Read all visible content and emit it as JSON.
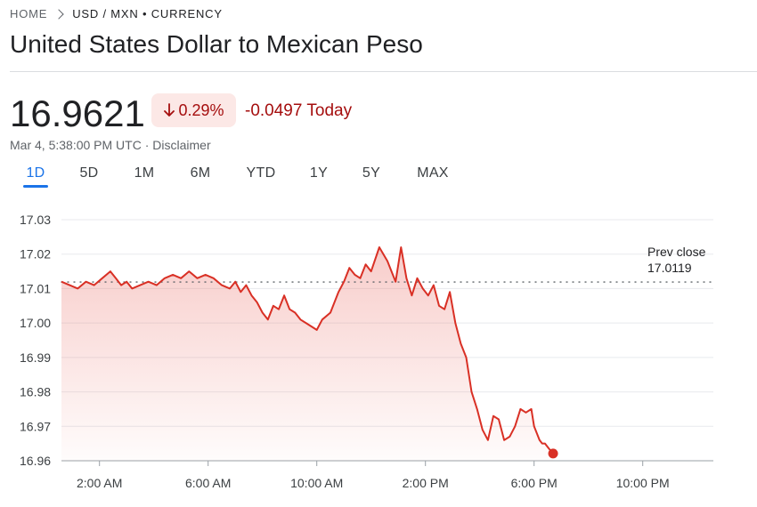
{
  "breadcrumb": {
    "home": "HOME",
    "current": "USD / MXN • CURRENCY"
  },
  "title": "United States Dollar to Mexican Peso",
  "quote": {
    "price": "16.9621",
    "change_pct": "0.29%",
    "change_abs": "-0.0497 Today",
    "timestamp": "Mar 4, 5:38:00 PM UTC · ",
    "disclaimer": "Disclaimer"
  },
  "tabs": [
    {
      "label": "1D",
      "active": true
    },
    {
      "label": "5D"
    },
    {
      "label": "1M"
    },
    {
      "label": "6M"
    },
    {
      "label": "YTD"
    },
    {
      "label": "1Y"
    },
    {
      "label": "5Y"
    },
    {
      "label": "MAX"
    }
  ],
  "colors": {
    "line": "#d93025",
    "negative": "#a50e0e",
    "badge_bg": "#fce8e6",
    "accent": "#1a73e8"
  },
  "chart_data": {
    "type": "area",
    "x_unit": "hour",
    "xlim": [
      0.6,
      24.6
    ],
    "ylim": [
      16.96,
      17.03
    ],
    "y_ticks": [
      17.03,
      17.02,
      17.01,
      17.0,
      16.99,
      16.98,
      16.97,
      16.96
    ],
    "y_tick_labels": [
      "17.03",
      "17.02",
      "17.01",
      "17.00",
      "16.99",
      "16.98",
      "16.97",
      "16.96"
    ],
    "x_ticks": [
      2,
      6,
      10,
      14,
      18,
      22
    ],
    "x_tick_labels": [
      "2:00 AM",
      "6:00 AM",
      "10:00 AM",
      "2:00 PM",
      "6:00 PM",
      "10:00 PM"
    ],
    "prev_close": {
      "label": "Prev close",
      "value": "17.0119"
    },
    "series": [
      {
        "x": [
          0.6,
          0.9,
          1.2,
          1.5,
          1.8,
          2.1,
          2.4,
          2.6,
          2.8,
          3.0,
          3.2,
          3.5,
          3.8,
          4.1,
          4.4,
          4.7,
          5.0,
          5.3,
          5.6,
          5.9,
          6.2,
          6.5,
          6.8,
          7.0,
          7.2,
          7.4,
          7.6,
          7.8,
          8.0,
          8.2,
          8.4,
          8.6,
          8.8,
          9.0,
          9.2,
          9.4,
          9.6,
          9.8,
          10.0,
          10.2,
          10.5,
          10.8,
          11.0,
          11.2,
          11.4,
          11.6,
          11.8,
          12.0,
          12.3,
          12.6,
          12.9,
          13.1,
          13.3,
          13.5,
          13.7,
          13.9,
          14.1,
          14.3,
          14.5,
          14.7,
          14.9,
          15.1,
          15.3,
          15.5,
          15.7,
          15.9,
          16.1,
          16.3,
          16.5,
          16.7,
          16.9,
          17.1,
          17.3,
          17.5,
          17.7,
          17.9,
          18.0,
          18.2,
          18.3,
          18.4,
          18.5,
          18.6,
          18.7
        ],
        "values": [
          17.012,
          17.011,
          17.01,
          17.012,
          17.011,
          17.013,
          17.015,
          17.013,
          17.011,
          17.012,
          17.01,
          17.011,
          17.012,
          17.011,
          17.013,
          17.014,
          17.013,
          17.015,
          17.013,
          17.014,
          17.013,
          17.011,
          17.01,
          17.012,
          17.009,
          17.011,
          17.008,
          17.006,
          17.003,
          17.001,
          17.005,
          17.004,
          17.008,
          17.004,
          17.003,
          17.001,
          17.0,
          16.999,
          16.998,
          17.001,
          17.003,
          17.009,
          17.012,
          17.016,
          17.014,
          17.013,
          17.017,
          17.015,
          17.022,
          17.018,
          17.012,
          17.022,
          17.013,
          17.008,
          17.013,
          17.01,
          17.008,
          17.011,
          17.005,
          17.004,
          17.009,
          17.0,
          16.994,
          16.99,
          16.98,
          16.975,
          16.969,
          16.966,
          16.973,
          16.972,
          16.966,
          16.967,
          16.97,
          16.975,
          16.974,
          16.975,
          16.97,
          16.966,
          16.965,
          16.965,
          16.964,
          16.963,
          16.9621
        ]
      }
    ]
  }
}
